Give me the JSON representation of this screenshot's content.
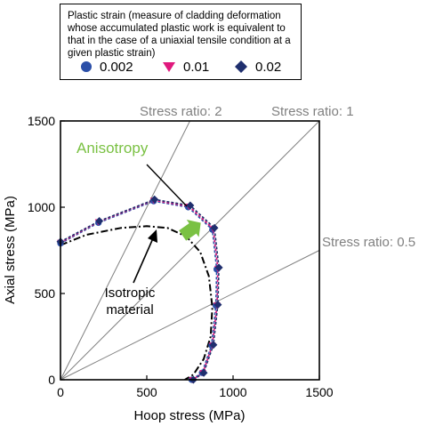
{
  "legend": {
    "title": "Plastic strain (measure of cladding deformation whose accumulated plastic work is equivalent to that in the case of a uniaxial tensile condition at a given plastic strain)",
    "items": [
      {
        "label": "0.002",
        "marker": "circle",
        "color": "#2b4fa8"
      },
      {
        "label": "0.01",
        "marker": "triangle-down",
        "color": "#e0197d"
      },
      {
        "label": "0.02",
        "marker": "diamond",
        "color": "#1f2f6e"
      }
    ]
  },
  "chart_data": {
    "type": "line",
    "xlabel": "Hoop stress (MPa)",
    "ylabel": "Axial stress (MPa)",
    "xlim": [
      0,
      1500
    ],
    "ylim": [
      0,
      1500
    ],
    "xticks": [
      "0",
      "500",
      "1000",
      "1500"
    ],
    "yticks": [
      "0",
      "500",
      "1000",
      "1500"
    ],
    "stress_ratio_lines": [
      {
        "label": "Stress ratio: 2",
        "slope": 2
      },
      {
        "label": "Stress ratio: 1",
        "slope": 1
      },
      {
        "label": "Stress ratio: 0.5",
        "slope": 0.5
      }
    ],
    "series": [
      {
        "name": "0.002",
        "color": "#2b4fa8",
        "x": [
          0,
          220,
          540,
          740,
          880,
          905,
          900,
          875,
          820,
          760
        ],
        "y": [
          790,
          910,
          1035,
          1000,
          870,
          640,
          430,
          200,
          40,
          0
        ]
      },
      {
        "name": "0.01",
        "color": "#e0197d",
        "x": [
          0,
          220,
          540,
          745,
          885,
          912,
          907,
          880,
          825,
          765
        ],
        "y": [
          795,
          915,
          1040,
          1005,
          875,
          645,
          432,
          200,
          40,
          0
        ]
      },
      {
        "name": "0.02",
        "color": "#1f2f6e",
        "x": [
          0,
          225,
          545,
          752,
          892,
          918,
          912,
          886,
          830,
          770
        ],
        "y": [
          800,
          920,
          1045,
          1010,
          880,
          650,
          435,
          202,
          40,
          0
        ]
      },
      {
        "name": "Isotropic material",
        "color": "#000000",
        "x": [
          0,
          150,
          350,
          500,
          620,
          730,
          810,
          860,
          880,
          870,
          830,
          770,
          720
        ],
        "y": [
          780,
          840,
          880,
          890,
          880,
          830,
          740,
          600,
          420,
          250,
          120,
          30,
          0
        ]
      }
    ],
    "annotations": {
      "anisotropy": "Anisotropy",
      "isotropic": "Isotropic\nmaterial"
    }
  }
}
